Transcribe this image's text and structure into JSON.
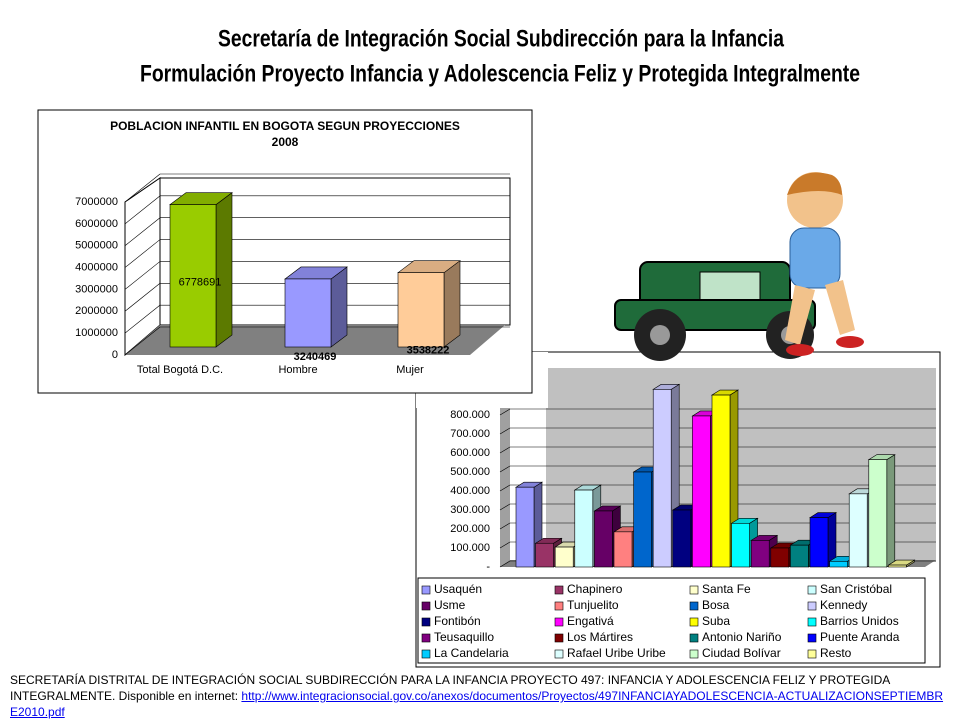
{
  "header": {
    "lines": [
      "Secretaría de Integración Social Subdirección para la Infancia",
      "Formulación Proyecto Infancia y Adolescencia Feliz y Protegida Integralmente"
    ]
  },
  "chart_data": [
    {
      "type": "bar",
      "title": "POBLACION INFANTIL EN BOGOTA SEGUN PROYECCIONES",
      "subtitle": "2008",
      "categories": [
        "Total Bogotá D.C.",
        "Hombre",
        "Mujer"
      ],
      "values": [
        6778691,
        3240469,
        3538222
      ],
      "colors": [
        "#99cc00",
        "#9999ff",
        "#ffcc99"
      ],
      "ylim": [
        0,
        7000000
      ],
      "yticks": [
        0,
        1000000,
        2000000,
        3000000,
        4000000,
        5000000,
        6000000,
        7000000
      ],
      "grid": true
    },
    {
      "type": "bar",
      "categories": [
        "Usaquén",
        "Chapinero",
        "Santa Fe",
        "San Cristóbal",
        "Usme",
        "Tunjuelito",
        "Bosa",
        "Kennedy",
        "Fontibón",
        "Engativá",
        "Suba",
        "Barrios Unidos",
        "Teusaquillo",
        "Los Mártires",
        "Antonio Nariño",
        "Puente Aranda",
        "La Candelaria",
        "Rafael Uribe Uribe",
        "Ciudad Bolívar",
        "Resto"
      ],
      "values": [
        420000,
        125000,
        105000,
        405000,
        295000,
        185000,
        500000,
        935000,
        300000,
        795000,
        905000,
        230000,
        140000,
        100000,
        115000,
        260000,
        30000,
        385000,
        565000,
        10000
      ],
      "colors": [
        "#9999ff",
        "#993366",
        "#ffffcc",
        "#ccffff",
        "#660066",
        "#ff8080",
        "#0066cc",
        "#ccccff",
        "#000080",
        "#ff00ff",
        "#ffff00",
        "#00ffff",
        "#800080",
        "#800000",
        "#008080",
        "#0000ff",
        "#00ccff",
        "#ddffff",
        "#ccffcc",
        "#ffff99"
      ],
      "ylim": [
        0,
        1000000
      ],
      "yticks": [
        {
          "value": 0,
          "label": "-"
        },
        {
          "value": 100000,
          "label": "100.000"
        },
        {
          "value": 200000,
          "label": "200.000"
        },
        {
          "value": 300000,
          "label": "300.000"
        },
        {
          "value": 400000,
          "label": "400.000"
        },
        {
          "value": 500000,
          "label": "500.000"
        },
        {
          "value": 600000,
          "label": "600.000"
        },
        {
          "value": 700000,
          "label": "700.000"
        },
        {
          "value": 800000,
          "label": "800.000"
        }
      ],
      "grid": true,
      "legend": "bottom"
    }
  ],
  "footer": {
    "text": "SECRETARÍA DISTRITAL DE INTEGRACIÓN SOCIAL SUBDIRECCIÓN PARA LA INFANCIA  PROYECTO 497: INFANCIA Y ADOLESCENCIA FELIZ Y PROTEGIDA INTEGRALMENTE.  Disponible en internet: ",
    "link": "http://www.integracionsocial.gov.co/anexos/documentos/Proyectos/497INFANCIAYADOLESCENCIA-ACTUALIZACIONSEPTIEMBRE2010.pdf"
  }
}
